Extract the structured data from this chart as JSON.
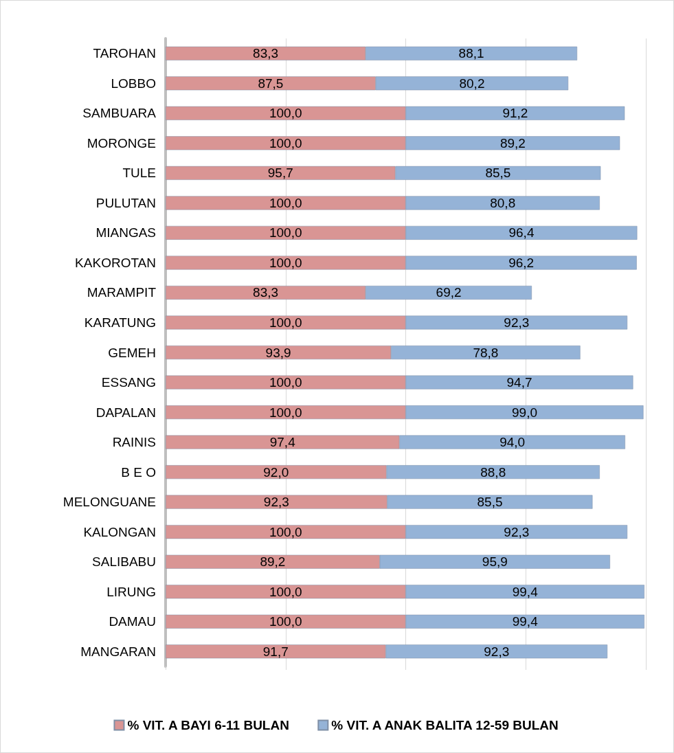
{
  "chart_data": {
    "type": "bar",
    "orientation": "horizontal",
    "stacked": true,
    "categories": [
      "TAROHAN",
      "LOBBO",
      "SAMBUARA",
      "MORONGE",
      "TULE",
      "PULUTAN",
      "MIANGAS",
      "KAKOROTAN",
      "MARAMPIT",
      "KARATUNG",
      "GEMEH",
      "ESSANG",
      "DAPALAN",
      "RAINIS",
      "B E O",
      "MELONGUANE",
      "KALONGAN",
      "SALIBABU",
      "LIRUNG",
      "DAMAU",
      "MANGARAN"
    ],
    "series": [
      {
        "name": "% VIT. A BAYI 6-11 BULAN",
        "color": "#d99594",
        "values": [
          83.3,
          87.5,
          100.0,
          100.0,
          95.7,
          100.0,
          100.0,
          100.0,
          83.3,
          100.0,
          93.9,
          100.0,
          100.0,
          97.4,
          92.0,
          92.3,
          100.0,
          89.2,
          100.0,
          100.0,
          91.7
        ],
        "value_labels": [
          "83,3",
          "87,5",
          "100,0",
          "100,0",
          "95,7",
          "100,0",
          "100,0",
          "100,0",
          "83,3",
          "100,0",
          "93,9",
          "100,0",
          "100,0",
          "97,4",
          "92,0",
          "92,3",
          "100,0",
          "89,2",
          "100,0",
          "100,0",
          "91,7"
        ]
      },
      {
        "name": "% VIT. A ANAK BALITA 12-59 BULAN",
        "color": "#95b3d7",
        "values": [
          88.1,
          80.2,
          91.2,
          89.2,
          85.5,
          80.8,
          96.4,
          96.2,
          69.2,
          92.3,
          78.8,
          94.7,
          99.0,
          94.0,
          88.8,
          85.5,
          92.3,
          95.9,
          99.4,
          99.4,
          92.3
        ],
        "value_labels": [
          "88,1",
          "80,2",
          "91,2",
          "89,2",
          "85,5",
          "80,8",
          "96,4",
          "96,2",
          "69,2",
          "92,3",
          "78,8",
          "94,7",
          "99,0",
          "94,0",
          "88,8",
          "85,5",
          "92,3",
          "95,9",
          "99,4",
          "99,4",
          "92,3"
        ]
      }
    ],
    "xlim": [
      0,
      200
    ],
    "xticks": [
      {
        "value": 0,
        "label": null
      },
      {
        "value": 50,
        "label": null
      },
      {
        "value": 100,
        "label": null
      },
      {
        "value": 150,
        "label": null
      },
      {
        "value": 200,
        "label": null
      }
    ],
    "tick_labels": "y",
    "grid": "x",
    "legend": "bottom"
  }
}
